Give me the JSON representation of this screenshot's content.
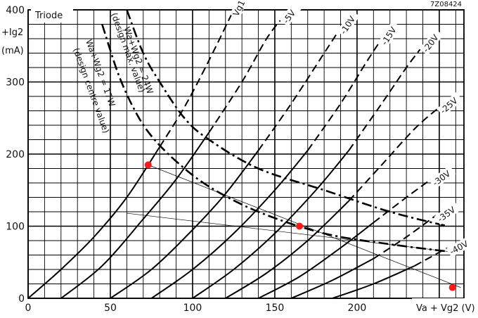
{
  "chart_data": {
    "type": "line",
    "title": "Triode",
    "figure_id": "7Z08424",
    "xlabel": "Va + Vg2 (V)",
    "ylabel_parts": [
      "+Ig2",
      "(mA)"
    ],
    "xlim": [
      0,
      265
    ],
    "ylim": [
      0,
      400
    ],
    "x_ticks": [
      0,
      50,
      100,
      150,
      200,
      250
    ],
    "y_ticks": [
      0,
      100,
      200,
      300,
      400
    ],
    "grid": true,
    "series": [
      {
        "name": "Vg1 = 0",
        "style": "dashed",
        "points": [
          [
            0,
            0
          ],
          [
            20,
            40
          ],
          [
            40,
            85
          ],
          [
            60,
            140
          ],
          [
            80,
            210
          ],
          [
            95,
            265
          ],
          [
            110,
            330
          ],
          [
            125,
            400
          ]
        ]
      },
      {
        "name": "-5V",
        "style": "dashed",
        "points": [
          [
            20,
            0
          ],
          [
            45,
            45
          ],
          [
            70,
            110
          ],
          [
            90,
            165
          ],
          [
            110,
            230
          ],
          [
            130,
            300
          ],
          [
            145,
            360
          ],
          [
            155,
            390
          ]
        ]
      },
      {
        "name": "-10V",
        "style": "dashed",
        "points": [
          [
            50,
            0
          ],
          [
            75,
            40
          ],
          [
            100,
            95
          ],
          [
            120,
            145
          ],
          [
            140,
            205
          ],
          [
            160,
            270
          ],
          [
            180,
            340
          ],
          [
            190,
            375
          ]
        ]
      },
      {
        "name": "-15V",
        "style": "dashed",
        "points": [
          [
            75,
            0
          ],
          [
            100,
            40
          ],
          [
            125,
            90
          ],
          [
            150,
            150
          ],
          [
            170,
            205
          ],
          [
            190,
            270
          ],
          [
            205,
            325
          ],
          [
            215,
            360
          ]
        ]
      },
      {
        "name": "-20V",
        "style": "dashed",
        "points": [
          [
            100,
            0
          ],
          [
            125,
            40
          ],
          [
            150,
            90
          ],
          [
            175,
            150
          ],
          [
            195,
            205
          ],
          [
            215,
            270
          ],
          [
            230,
            320
          ],
          [
            240,
            350
          ]
        ]
      },
      {
        "name": "-25V",
        "style": "dashed",
        "points": [
          [
            120,
            0
          ],
          [
            145,
            35
          ],
          [
            170,
            80
          ],
          [
            195,
            135
          ],
          [
            215,
            185
          ],
          [
            235,
            235
          ],
          [
            250,
            265
          ]
        ]
      },
      {
        "name": "-30V",
        "style": "dashed",
        "points": [
          [
            140,
            0
          ],
          [
            165,
            30
          ],
          [
            190,
            70
          ],
          [
            210,
            105
          ],
          [
            230,
            140
          ],
          [
            245,
            165
          ]
        ]
      },
      {
        "name": "-35V",
        "style": "dashed",
        "points": [
          [
            160,
            0
          ],
          [
            185,
            25
          ],
          [
            210,
            55
          ],
          [
            230,
            85
          ],
          [
            248,
            115
          ]
        ]
      },
      {
        "name": "-40V",
        "style": "dashed",
        "points": [
          [
            185,
            0
          ],
          [
            210,
            20
          ],
          [
            235,
            45
          ],
          [
            255,
            70
          ]
        ]
      }
    ],
    "dissipation_curves": [
      {
        "name": "Wa+Wg2 = 24W",
        "note": "(design max. value)",
        "style": "dash-dot",
        "points": [
          [
            60,
            400
          ],
          [
            70,
            340
          ],
          [
            80,
            300
          ],
          [
            95,
            250
          ],
          [
            110,
            220
          ],
          [
            140,
            180
          ],
          [
            180,
            150
          ],
          [
            220,
            120
          ],
          [
            255,
            100
          ]
        ]
      },
      {
        "name": "Wa+Wg2 = 17W",
        "note": "(design centre value)",
        "style": "dash-dot",
        "points": [
          [
            45,
            380
          ],
          [
            55,
            310
          ],
          [
            65,
            260
          ],
          [
            75,
            225
          ],
          [
            90,
            190
          ],
          [
            110,
            155
          ],
          [
            140,
            120
          ],
          [
            180,
            90
          ],
          [
            220,
            75
          ],
          [
            255,
            65
          ]
        ]
      }
    ],
    "load_lines": [
      {
        "points": [
          [
            73,
            185
          ],
          [
            263,
            15
          ]
        ]
      },
      {
        "points": [
          [
            60,
            118
          ],
          [
            255,
            65
          ]
        ]
      }
    ],
    "operating_points": [
      {
        "x": 73,
        "y": 185
      },
      {
        "x": 165,
        "y": 100
      },
      {
        "x": 258,
        "y": 15
      }
    ]
  }
}
